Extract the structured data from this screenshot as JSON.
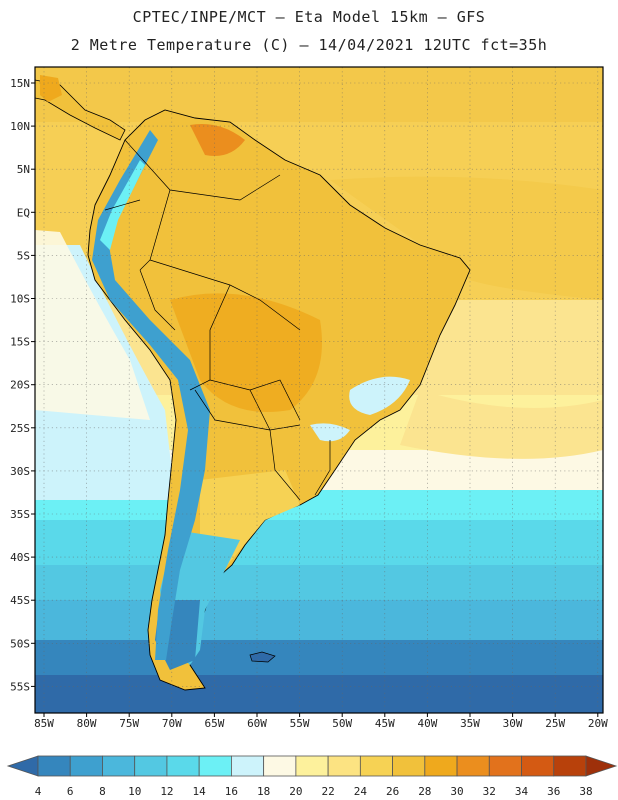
{
  "header": {
    "line1": "CPTEC/INPE/MCT –  Eta Model 15km – GFS",
    "line2": "2 Metre Temperature (C) – 14/04/2021 12UTC fct=35h"
  },
  "latitude_labels": [
    "15N",
    "10N",
    "5N",
    "EQ",
    "5S",
    "10S",
    "15S",
    "20S",
    "25S",
    "30S",
    "35S",
    "40S",
    "45S",
    "50S",
    "55S"
  ],
  "longitude_labels": [
    "85W",
    "80W",
    "75W",
    "70W",
    "65W",
    "60W",
    "55W",
    "50W",
    "45W",
    "40W",
    "35W",
    "30W",
    "25W",
    "20W"
  ],
  "colorbar": {
    "values": [
      "4",
      "6",
      "8",
      "10",
      "12",
      "14",
      "16",
      "18",
      "20",
      "22",
      "24",
      "26",
      "28",
      "30",
      "32",
      "34",
      "36",
      "38"
    ],
    "colors": [
      "#2f6aa8",
      "#3586bd",
      "#3ea0cf",
      "#4bb7dc",
      "#53c8e2",
      "#5ad9ea",
      "#6cf0f5",
      "#cdf3fb",
      "#fdf9e4",
      "#fdf19c",
      "#fce382",
      "#f6d254",
      "#f1c13b",
      "#efa91d",
      "#eb8e1e",
      "#e2721c",
      "#d45a13",
      "#b8410b",
      "#9e300a"
    ]
  },
  "map": {
    "background_colors": {
      "ocean_warm": "#f6cf55",
      "ocean_mild": "#fbe490",
      "ocean_cool": "#cfeefa",
      "land_hot": "#f0b23a",
      "andes_cold": "#3ea0cf"
    }
  }
}
